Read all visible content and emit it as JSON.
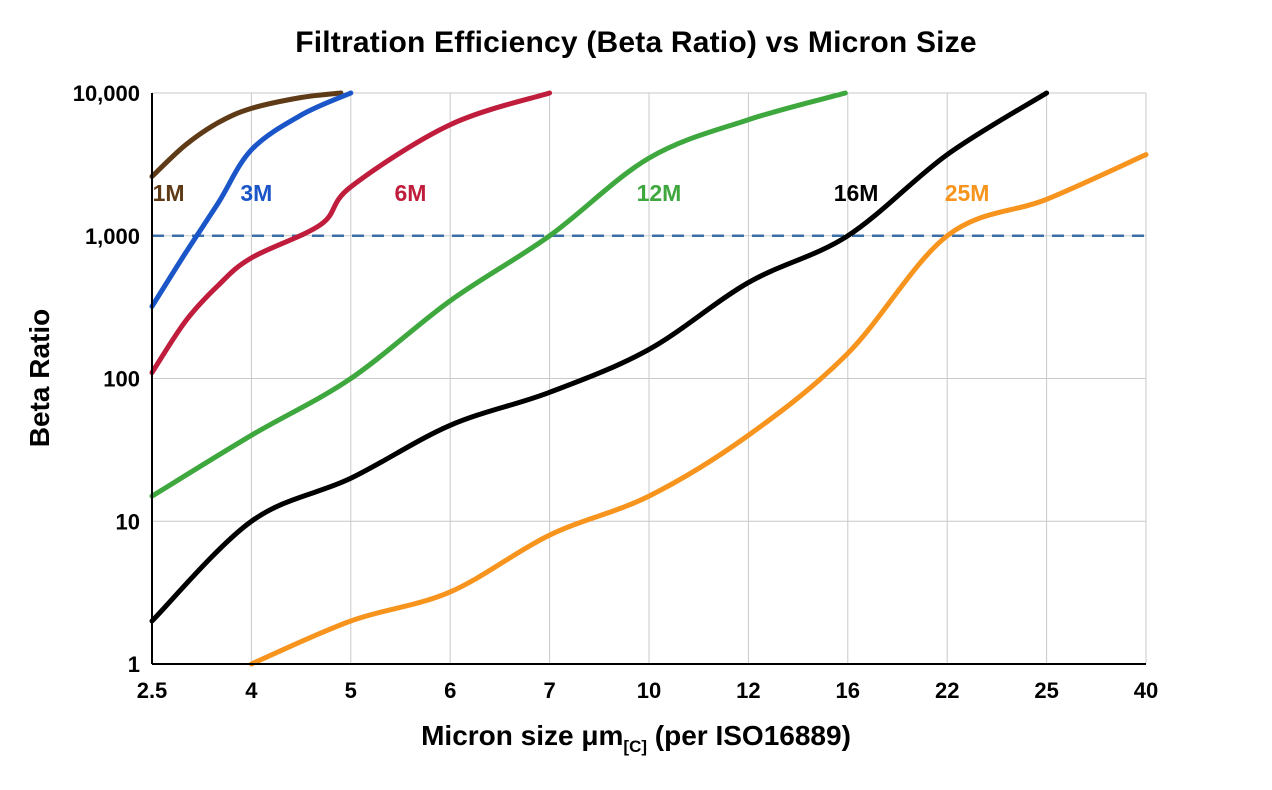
{
  "chart_data": {
    "type": "line",
    "title": "Filtration Efficiency (Beta Ratio) vs Micron Size",
    "ylabel": "Beta Ratio",
    "xlabel": {
      "main": "Micron size μm",
      "sub": "[C]",
      "suffix": " (per ISO16889)"
    },
    "x_axis": {
      "spacing": "categorical",
      "categories": [
        2.5,
        4,
        5,
        6,
        7,
        10,
        12,
        16,
        22,
        25,
        40
      ],
      "tick_labels": [
        "2.5",
        "4",
        "5",
        "6",
        "7",
        "10",
        "12",
        "16",
        "22",
        "25",
        "40"
      ]
    },
    "y_axis": {
      "scale": "log",
      "min": 1,
      "max": 10000,
      "ticks": [
        1,
        10,
        100,
        1000,
        10000
      ],
      "tick_labels": [
        "1",
        "10",
        "100",
        "1,000",
        "10,000"
      ]
    },
    "grid": true,
    "colors": {
      "grid": "#c9c9c9",
      "axis": "#000000",
      "background": "#ffffff"
    },
    "reference_line": {
      "y": 1000,
      "style": "dashed",
      "color": "#3b6fa8"
    },
    "series": [
      {
        "name": "1M",
        "color": "#5e3a16",
        "label": {
          "x": 2.75,
          "y": 2000
        },
        "points": [
          [
            2.5,
            2600
          ],
          [
            3,
            4300
          ],
          [
            3.5,
            6200
          ],
          [
            4,
            7800
          ],
          [
            4.5,
            9300
          ],
          [
            4.9,
            10000
          ]
        ]
      },
      {
        "name": "3M",
        "color": "#1b56c9",
        "label": {
          "x": 4.05,
          "y": 2000
        },
        "points": [
          [
            2.5,
            320
          ],
          [
            3,
            750
          ],
          [
            3.5,
            1700
          ],
          [
            4,
            4000
          ],
          [
            4.5,
            7000
          ],
          [
            5,
            10000
          ]
        ]
      },
      {
        "name": "6M",
        "color": "#c01d3d",
        "label": {
          "x": 5.6,
          "y": 2000
        },
        "points": [
          [
            2.5,
            110
          ],
          [
            3,
            250
          ],
          [
            3.5,
            450
          ],
          [
            4,
            700
          ],
          [
            4.7,
            1200
          ],
          [
            5,
            2200
          ],
          [
            6,
            6000
          ],
          [
            7,
            10000
          ]
        ]
      },
      {
        "name": "12M",
        "color": "#3ea83e",
        "label": {
          "x": 10.2,
          "y": 2000
        },
        "points": [
          [
            2.5,
            15
          ],
          [
            4,
            40
          ],
          [
            5,
            100
          ],
          [
            6,
            350
          ],
          [
            7,
            1000
          ],
          [
            10,
            3500
          ],
          [
            12,
            6500
          ],
          [
            15.9,
            10000
          ]
        ]
      },
      {
        "name": "16M",
        "color": "#000000",
        "label": {
          "x": 16.5,
          "y": 2000
        },
        "points": [
          [
            2.5,
            2
          ],
          [
            4,
            10
          ],
          [
            5,
            20
          ],
          [
            6,
            47
          ],
          [
            7,
            80
          ],
          [
            10,
            160
          ],
          [
            12,
            470
          ],
          [
            16,
            1000
          ],
          [
            22,
            3700
          ],
          [
            25,
            10000
          ]
        ]
      },
      {
        "name": "25M",
        "color": "#f7941e",
        "label": {
          "x": 22.6,
          "y": 2000
        },
        "points": [
          [
            4,
            1
          ],
          [
            5,
            2
          ],
          [
            6,
            3.2
          ],
          [
            7,
            8
          ],
          [
            10,
            15
          ],
          [
            12,
            40
          ],
          [
            16,
            150
          ],
          [
            22,
            1000
          ],
          [
            25,
            1800
          ],
          [
            40,
            3700
          ]
        ]
      }
    ]
  }
}
